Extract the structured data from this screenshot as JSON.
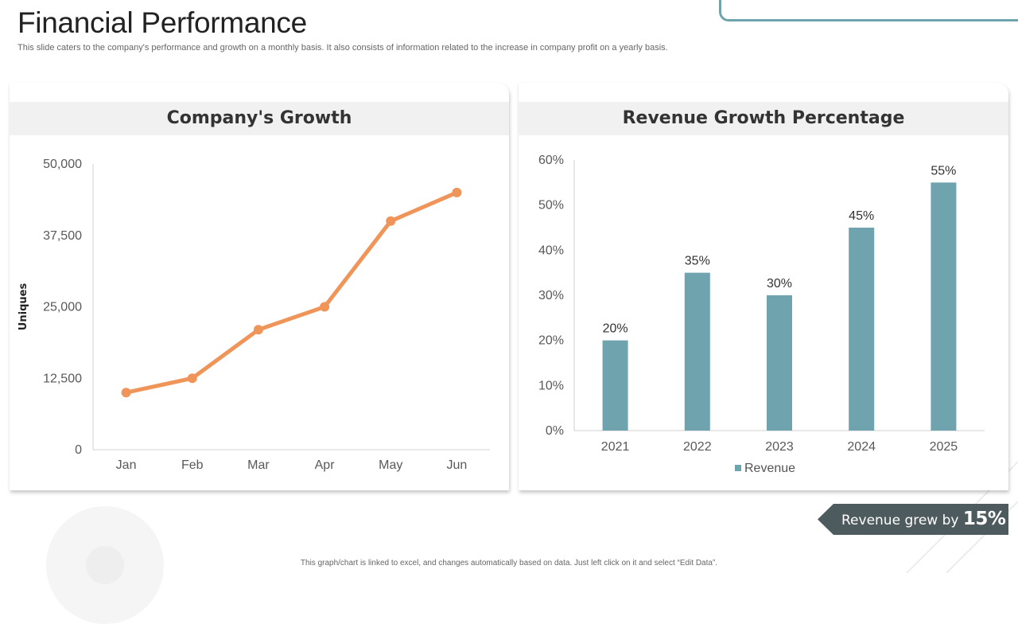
{
  "page": {
    "title": "Financial Performance",
    "subtitle": "This slide caters to the company's performance and growth on a monthly basis. It also consists of information related to the increase in company profit on a yearly  basis.",
    "footer_note": "This graph/chart is linked to excel, and changes automatically based on data. Just left click on it and select “Edit Data”.",
    "callout_prefix": "Revenue grew by ",
    "callout_value": "15%"
  },
  "colors": {
    "line": "#f0955a",
    "bar": "#6fa3ae",
    "callout": "#4e5b5e",
    "frame": "#6fa3ae",
    "axis": "#d0d0d0",
    "text": "#595959"
  },
  "chart_data": [
    {
      "type": "line",
      "title": "Company's Growth",
      "categories": [
        "Jan",
        "Feb",
        "Mar",
        "Apr",
        "May",
        "Jun"
      ],
      "series": [
        {
          "name": "Uniques",
          "values": [
            10000,
            12500,
            21000,
            25000,
            40000,
            45000
          ]
        }
      ],
      "xlabel": "",
      "ylabel": "Uniques",
      "ylim": [
        0,
        50000
      ],
      "yticks": [
        0,
        12500,
        25000,
        37500,
        50000
      ],
      "ytick_labels": [
        "0",
        "12,500",
        "25,000",
        "37,500",
        "50,000"
      ],
      "grid": false
    },
    {
      "type": "bar",
      "title": "Revenue Growth Percentage",
      "categories": [
        "2021",
        "2022",
        "2023",
        "2024",
        "2025"
      ],
      "series": [
        {
          "name": "Revenue",
          "values": [
            20,
            35,
            30,
            45,
            55
          ]
        }
      ],
      "data_labels": [
        "20%",
        "35%",
        "30%",
        "45%",
        "55%"
      ],
      "ylim": [
        0,
        60
      ],
      "yticks": [
        0,
        10,
        20,
        30,
        40,
        50,
        60
      ],
      "ytick_labels": [
        "0%",
        "10%",
        "20%",
        "30%",
        "40%",
        "50%",
        "60%"
      ],
      "legend": "bottom",
      "grid": false
    }
  ]
}
